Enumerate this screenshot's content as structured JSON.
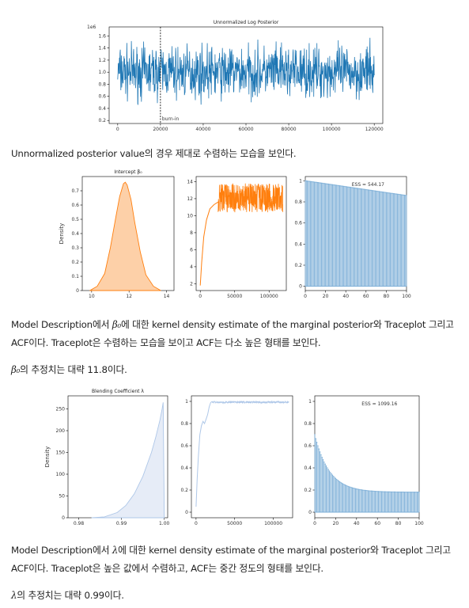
{
  "paragraphs": {
    "p1": "Unnormalized posterior value의 경우 제대로 수렴하는 모습을 보인다.",
    "p2_pre": "Model Description에서 ",
    "p2_sym": "β₀",
    "p2_post": "에 대한 kernel density estimate of the marginal posterior와 Traceplot 그리고 ACF이다. Traceplot은 수렴하는 모습을 보이고 ACF는 다소 높은 형태를 보인다.",
    "p3_sym": "β₀",
    "p3_post": "의 추정치는 대략 11.8이다.",
    "p4_pre": "Model Description에서 ",
    "p4_sym": "λ",
    "p4_post": "에 대한 kernel density estimate of the marginal posterior와 Traceplot 그리고 ACF이다. Traceplot은 높은 값에서 수렴하고, ACF는 중간 정도의 형태를 보인다.",
    "p5_sym": "λ",
    "p5_post": "의 추정치는 대략 0.99이다."
  },
  "colors": {
    "blue": "#1f77b4",
    "orange": "#ff7f0e",
    "orange_fill": "#fdd0a8",
    "light_blue": "#aec7e8",
    "bar_blue": "#7fb0d8"
  },
  "chart_data": [
    {
      "type": "line",
      "title": "Unnormalized Log Posterior",
      "scale_label": "1e6",
      "xticks": [
        0,
        20000,
        40000,
        60000,
        80000,
        100000,
        120000
      ],
      "yticks": [
        0.2,
        0.4,
        0.6,
        0.8,
        1.0,
        1.2,
        1.4,
        1.6
      ],
      "xlim": [
        -4000,
        124000
      ],
      "ylim": [
        0.15,
        1.75
      ],
      "trace_range": [
        0.3,
        1.55
      ],
      "trace_center": 1.0,
      "burn_in_x": 20000,
      "burn_in_label": "burn-in"
    },
    {
      "type": "area",
      "title": "Intercept β₀",
      "ylabel": "Density",
      "xticks": [
        10,
        12,
        14
      ],
      "yticks": [
        0.0,
        0.1,
        0.2,
        0.3,
        0.4,
        0.5,
        0.6,
        0.7
      ],
      "xlim": [
        9.5,
        14.4
      ],
      "ylim": [
        0,
        0.8
      ],
      "x": [
        9.9,
        10.3,
        10.7,
        11.0,
        11.3,
        11.5,
        11.7,
        11.8,
        11.9,
        12.1,
        12.3,
        12.6,
        12.9,
        13.3,
        13.7
      ],
      "values": [
        0.0,
        0.03,
        0.12,
        0.3,
        0.52,
        0.66,
        0.75,
        0.76,
        0.74,
        0.64,
        0.48,
        0.27,
        0.11,
        0.03,
        0.0
      ]
    },
    {
      "type": "line",
      "title": "",
      "xticks": [
        0,
        50000,
        100000
      ],
      "yticks": [
        2,
        4,
        6,
        8,
        10,
        12,
        14
      ],
      "xlim": [
        -6000,
        125000
      ],
      "ylim": [
        1.2,
        14.6
      ],
      "burn_curve": {
        "x": [
          0,
          2000,
          5000,
          9000,
          14000,
          20000,
          26000
        ],
        "values": [
          1.8,
          4.5,
          7.5,
          9.5,
          10.8,
          11.3,
          11.6
        ]
      },
      "trace_range": [
        10.4,
        13.8
      ]
    },
    {
      "type": "bar",
      "title": "",
      "annotation": "ESS = 544.17",
      "xticks": [
        0,
        20,
        40,
        60,
        80,
        100
      ],
      "yticks": [
        0.0,
        0.2,
        0.4,
        0.6,
        0.8,
        1.0
      ],
      "xlim": [
        0,
        100
      ],
      "ylim": [
        -0.04,
        1.04
      ],
      "lag_start": 1.0,
      "lag_end": 0.86
    },
    {
      "type": "area",
      "title": "Blending Coefficient λ",
      "ylabel": "Density",
      "xticks": [
        0.98,
        0.99,
        1.0
      ],
      "xtick_labels": [
        "0.98",
        "0.99",
        "1.00"
      ],
      "yticks": [
        0,
        50,
        100,
        150,
        200,
        250
      ],
      "xlim": [
        0.9775,
        1.0008
      ],
      "ylim": [
        0,
        280
      ],
      "x": [
        0.983,
        0.986,
        0.989,
        0.991,
        0.993,
        0.995,
        0.997,
        0.998,
        0.999,
        0.9995,
        0.99975,
        1.0
      ],
      "values": [
        0,
        2,
        12,
        28,
        55,
        95,
        150,
        185,
        225,
        250,
        265,
        0
      ]
    },
    {
      "type": "line",
      "title": "",
      "xticks": [
        0,
        50000,
        100000
      ],
      "yticks": [
        0.0,
        0.2,
        0.4,
        0.6,
        0.8,
        1.0
      ],
      "xlim": [
        -6000,
        125000
      ],
      "ylim": [
        -0.05,
        1.05
      ],
      "burn_curve": {
        "x": [
          0,
          1500,
          3000,
          5000,
          7000,
          9000,
          11000,
          13000,
          15000,
          17000,
          19000,
          21000
        ],
        "values": [
          0.05,
          0.3,
          0.5,
          0.7,
          0.78,
          0.82,
          0.8,
          0.84,
          0.88,
          0.95,
          0.99,
          1.0
        ]
      },
      "trace_range": [
        0.985,
        1.0
      ]
    },
    {
      "type": "bar",
      "title": "",
      "annotation": "ESS = 1099.16",
      "xticks": [
        0,
        20,
        40,
        60,
        80,
        100
      ],
      "yticks": [
        0.0,
        0.2,
        0.4,
        0.6,
        0.8,
        1.0
      ],
      "xlim": [
        0,
        100
      ],
      "ylim": [
        -0.05,
        1.05
      ],
      "lag_start": 0.7,
      "lag_end": 0.18
    }
  ]
}
